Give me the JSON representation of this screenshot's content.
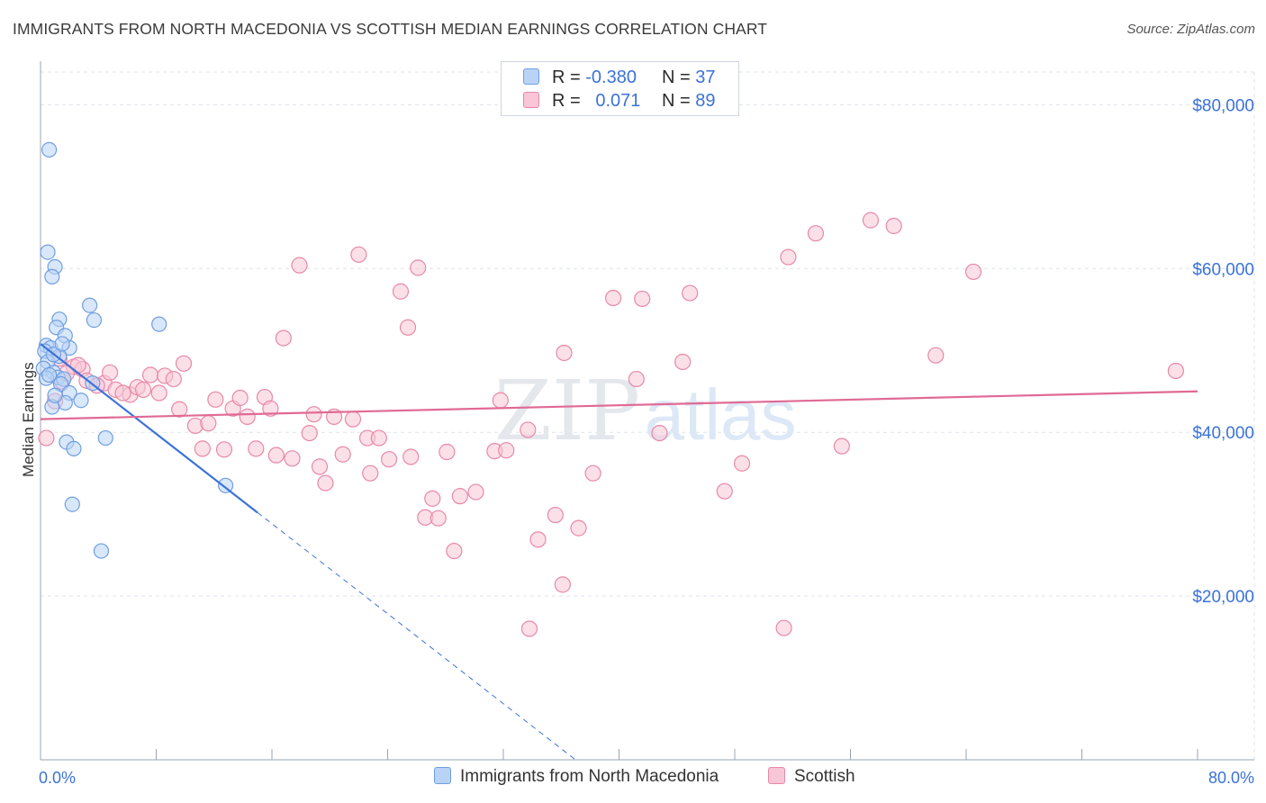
{
  "title": "IMMIGRANTS FROM NORTH MACEDONIA VS SCOTTISH MEDIAN EARNINGS CORRELATION CHART",
  "source": "Source: ZipAtlas.com",
  "watermark": {
    "zip": "ZIP",
    "atlas": "atlas"
  },
  "legend_top": [
    {
      "r_label": "R =",
      "r_value": "-0.380",
      "n_label": "N =",
      "n_value": "37"
    },
    {
      "r_label": "R =",
      "r_value": "0.071",
      "n_label": "N =",
      "n_value": "89"
    }
  ],
  "colors": {
    "blue_fill": "#b9d3f5",
    "blue_stroke": "#6f9fe0",
    "blue_line": "#3b72d9",
    "pink_fill": "#f8c6d6",
    "pink_stroke": "#e888a8",
    "pink_line": "#e06a95",
    "tick_label": "#3b72d9",
    "grid": "#dde3ea"
  },
  "chart_data": {
    "type": "scatter",
    "title": "IMMIGRANTS FROM NORTH MACEDONIA VS SCOTTISH MEDIAN EARNINGS CORRELATION CHART",
    "xlabel": "",
    "ylabel": "Median Earnings",
    "xlim": [
      0,
      80
    ],
    "ylim": [
      0,
      84000
    ],
    "x_tick_labels": [
      "0.0%",
      "80.0%"
    ],
    "y_ticks": [
      20000,
      40000,
      60000,
      80000
    ],
    "y_tick_labels": [
      "$20,000",
      "$40,000",
      "$60,000",
      "$80,000"
    ],
    "grid": true,
    "legend_position": "bottom",
    "series": [
      {
        "name": "Immigrants from North Macedonia",
        "color": "#6f9fe0",
        "trend": {
          "x0": 0,
          "y0": 50800,
          "x1": 15,
          "y1": 30200,
          "dashed_to_x": 37
        },
        "points": [
          [
            0.6,
            74500
          ],
          [
            0.5,
            62000
          ],
          [
            1.0,
            60200
          ],
          [
            0.8,
            59000
          ],
          [
            3.4,
            55500
          ],
          [
            1.3,
            53800
          ],
          [
            3.7,
            53700
          ],
          [
            8.2,
            53200
          ],
          [
            1.1,
            52800
          ],
          [
            1.7,
            51800
          ],
          [
            0.4,
            50600
          ],
          [
            0.7,
            50300
          ],
          [
            2.0,
            50300
          ],
          [
            0.3,
            49900
          ],
          [
            1.3,
            49300
          ],
          [
            0.5,
            48600
          ],
          [
            0.2,
            47800
          ],
          [
            0.9,
            47300
          ],
          [
            1.2,
            46700
          ],
          [
            1.6,
            46500
          ],
          [
            3.6,
            46000
          ],
          [
            0.4,
            46600
          ],
          [
            1.4,
            45900
          ],
          [
            2.0,
            44800
          ],
          [
            2.8,
            43900
          ],
          [
            1.7,
            43600
          ],
          [
            0.8,
            43100
          ],
          [
            4.5,
            39300
          ],
          [
            1.8,
            38800
          ],
          [
            2.3,
            38000
          ],
          [
            2.2,
            31200
          ],
          [
            12.8,
            33500
          ],
          [
            4.2,
            25500
          ],
          [
            0.9,
            49500
          ],
          [
            1.5,
            50800
          ],
          [
            0.6,
            47000
          ],
          [
            1.0,
            44500
          ]
        ]
      },
      {
        "name": "Scottish",
        "color": "#e888a8",
        "trend": {
          "x0": 0,
          "y0": 41600,
          "x1": 80,
          "y1": 45000
        },
        "points": [
          [
            0.4,
            39300
          ],
          [
            1.0,
            43800
          ],
          [
            1.5,
            46200
          ],
          [
            1.3,
            49000
          ],
          [
            2.3,
            48000
          ],
          [
            2.9,
            47700
          ],
          [
            3.2,
            46300
          ],
          [
            4.4,
            46000
          ],
          [
            4.8,
            47300
          ],
          [
            5.2,
            45200
          ],
          [
            6.2,
            44600
          ],
          [
            6.7,
            45500
          ],
          [
            7.1,
            45200
          ],
          [
            7.6,
            47000
          ],
          [
            8.2,
            44800
          ],
          [
            8.6,
            46900
          ],
          [
            9.2,
            46500
          ],
          [
            9.9,
            48400
          ],
          [
            9.6,
            42800
          ],
          [
            10.7,
            40800
          ],
          [
            11.2,
            38000
          ],
          [
            11.6,
            41100
          ],
          [
            12.1,
            44000
          ],
          [
            12.7,
            37900
          ],
          [
            13.3,
            42900
          ],
          [
            13.8,
            44200
          ],
          [
            14.3,
            41900
          ],
          [
            14.9,
            38000
          ],
          [
            15.5,
            44300
          ],
          [
            15.9,
            42900
          ],
          [
            16.3,
            37200
          ],
          [
            17.4,
            36800
          ],
          [
            17.9,
            60400
          ],
          [
            16.8,
            51500
          ],
          [
            18.6,
            39900
          ],
          [
            18.9,
            42200
          ],
          [
            19.3,
            35800
          ],
          [
            19.7,
            33800
          ],
          [
            20.3,
            41900
          ],
          [
            20.9,
            37300
          ],
          [
            21.6,
            41600
          ],
          [
            22.0,
            61700
          ],
          [
            22.6,
            39300
          ],
          [
            22.8,
            35000
          ],
          [
            23.4,
            39300
          ],
          [
            24.1,
            36700
          ],
          [
            24.9,
            57200
          ],
          [
            25.4,
            52800
          ],
          [
            25.6,
            37000
          ],
          [
            26.1,
            60100
          ],
          [
            26.6,
            29600
          ],
          [
            27.1,
            31900
          ],
          [
            27.5,
            29500
          ],
          [
            28.1,
            37600
          ],
          [
            28.6,
            25500
          ],
          [
            29.0,
            32200
          ],
          [
            30.1,
            32700
          ],
          [
            31.4,
            37700
          ],
          [
            31.8,
            43900
          ],
          [
            32.2,
            37800
          ],
          [
            33.7,
            40300
          ],
          [
            33.8,
            16000
          ],
          [
            34.4,
            26900
          ],
          [
            35.6,
            29900
          ],
          [
            36.1,
            21400
          ],
          [
            36.2,
            49700
          ],
          [
            37.2,
            28300
          ],
          [
            38.2,
            35000
          ],
          [
            39.6,
            56400
          ],
          [
            41.2,
            46500
          ],
          [
            41.6,
            56300
          ],
          [
            42.8,
            39900
          ],
          [
            44.4,
            48600
          ],
          [
            44.9,
            57000
          ],
          [
            47.3,
            32800
          ],
          [
            48.5,
            36200
          ],
          [
            51.4,
            16100
          ],
          [
            51.7,
            61400
          ],
          [
            53.6,
            64300
          ],
          [
            55.4,
            38300
          ],
          [
            57.4,
            65900
          ],
          [
            59.0,
            65200
          ],
          [
            61.9,
            49400
          ],
          [
            64.5,
            59600
          ],
          [
            78.5,
            47500
          ],
          [
            2.6,
            48200
          ],
          [
            5.7,
            44800
          ],
          [
            1.8,
            47200
          ],
          [
            3.9,
            45700
          ]
        ]
      }
    ]
  },
  "x_axis": {
    "left_label": "0.0%",
    "right_label": "80.0%"
  }
}
